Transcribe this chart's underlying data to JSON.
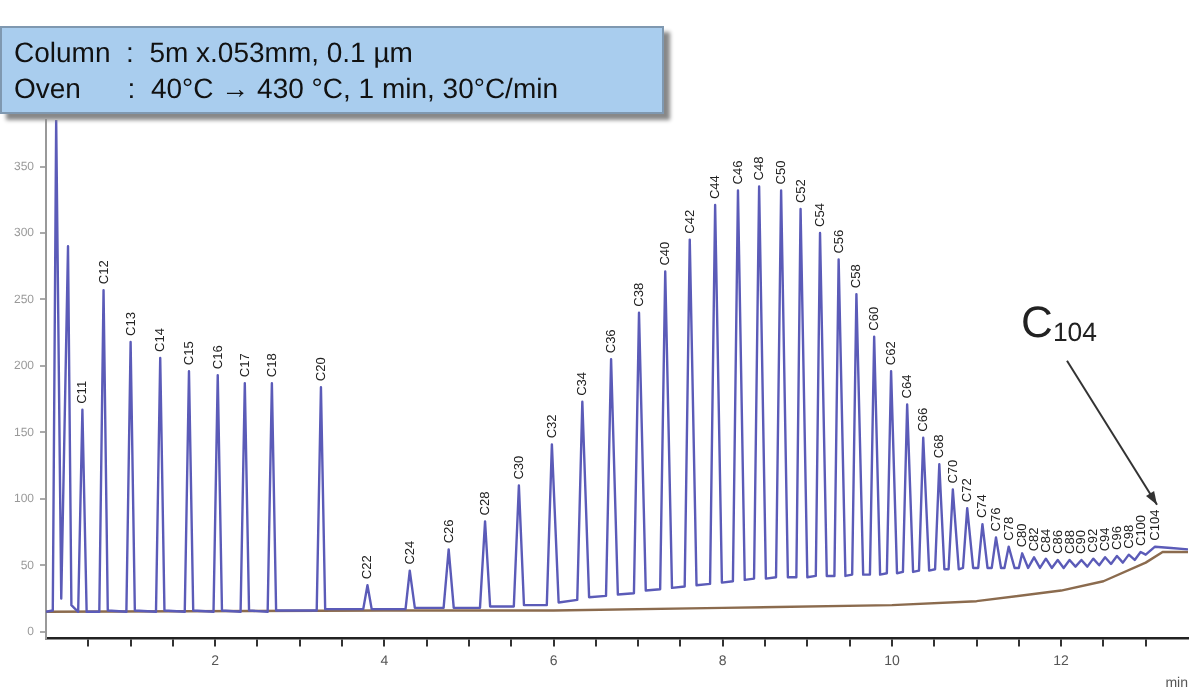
{
  "chart_data": {
    "type": "line",
    "title": "Column  :  5m x.053mm, 0.1 µm",
    "subtitle": "Oven      :  40°C → 430 °C, 1 min, 30°C/min",
    "xlabel": "min",
    "xlim": [
      0,
      13.5
    ],
    "ylim": [
      -5,
      385
    ],
    "xticks": [
      {
        "value": 0.5,
        "label": null
      },
      {
        "value": 1,
        "label": null
      },
      {
        "value": 1.5,
        "label": null
      },
      2,
      {
        "value": 2.5,
        "label": null
      },
      {
        "value": 3,
        "label": null
      },
      {
        "value": 3.5,
        "label": null
      },
      4,
      {
        "value": 4.5,
        "label": null
      },
      {
        "value": 5,
        "label": null
      },
      {
        "value": 5.5,
        "label": null
      },
      6,
      {
        "value": 6.5,
        "label": null
      },
      {
        "value": 7,
        "label": null
      },
      {
        "value": 7.5,
        "label": null
      },
      8,
      {
        "value": 8.5,
        "label": null
      },
      {
        "value": 9,
        "label": null
      },
      {
        "value": 9.5,
        "label": null
      },
      10,
      {
        "value": 10.5,
        "label": null
      },
      {
        "value": 11,
        "label": null
      },
      {
        "value": 11.5,
        "label": null
      },
      12,
      {
        "value": 12.5,
        "label": null
      },
      {
        "value": 13,
        "label": null
      }
    ],
    "yticks": [
      0,
      50,
      100,
      150,
      200,
      250,
      300,
      350
    ],
    "grid": false,
    "legend": false,
    "marker": "none",
    "line_style": "solid",
    "series": [
      {
        "color": "#5b5bb8",
        "x": [
          0,
          0.08,
          0.12,
          0.18,
          0.26,
          0.3,
          0.38,
          0.43,
          0.48,
          0.63,
          0.68,
          0.73,
          0.95,
          1.0,
          1.05,
          1.3,
          1.35,
          1.4,
          1.64,
          1.69,
          1.74,
          1.98,
          2.03,
          2.08,
          2.3,
          2.35,
          2.4,
          2.62,
          2.67,
          2.72,
          3.2,
          3.25,
          3.3,
          3.75,
          3.8,
          3.85,
          4.25,
          4.3,
          4.36,
          4.7,
          4.76,
          4.82,
          5.13,
          5.19,
          5.25,
          5.53,
          5.59,
          5.65,
          5.92,
          5.98,
          6.06,
          6.28,
          6.34,
          6.42,
          6.62,
          6.68,
          6.76,
          6.95,
          7.01,
          7.09,
          7.26,
          7.32,
          7.4,
          7.55,
          7.61,
          7.69,
          7.85,
          7.91,
          7.99,
          8.12,
          8.18,
          8.26,
          8.37,
          8.43,
          8.51,
          8.63,
          8.69,
          8.77,
          8.87,
          8.92,
          9.0,
          9.1,
          9.15,
          9.23,
          9.32,
          9.37,
          9.45,
          9.53,
          9.58,
          9.66,
          9.74,
          9.79,
          9.86,
          9.94,
          9.99,
          10.06,
          10.13,
          10.18,
          10.25,
          10.32,
          10.37,
          10.44,
          10.51,
          10.56,
          10.62,
          10.67,
          10.72,
          10.79,
          10.84,
          10.89,
          10.96,
          11.02,
          11.07,
          11.13,
          11.18,
          11.23,
          11.29,
          11.33,
          11.38,
          11.45,
          11.5,
          11.54,
          11.61,
          11.68,
          11.75,
          11.82,
          11.89,
          11.96,
          12.03,
          12.1,
          12.17,
          12.24,
          12.31,
          12.38,
          12.45,
          12.52,
          12.59,
          12.66,
          12.73,
          12.8,
          12.87,
          12.94,
          13.0,
          13.11,
          13.3,
          13.5
        ],
        "values": [
          15,
          16,
          385,
          25,
          290,
          20,
          15,
          167,
          15,
          15,
          257,
          16,
          15,
          218,
          16,
          15,
          206,
          16,
          15,
          196,
          16,
          15,
          193,
          16,
          15,
          187,
          16,
          15,
          187,
          16,
          16,
          184,
          17,
          17,
          35,
          17,
          17,
          46,
          18,
          18,
          62,
          18,
          18,
          83,
          19,
          19,
          110,
          20,
          20,
          141,
          22,
          24,
          173,
          26,
          27,
          205,
          28,
          29,
          240,
          31,
          32,
          271,
          33,
          34,
          295,
          35,
          36,
          321,
          37,
          38,
          332,
          39,
          40,
          335,
          40,
          41,
          332,
          41,
          41,
          318,
          41,
          42,
          300,
          42,
          42,
          280,
          42,
          43,
          254,
          43,
          43,
          222,
          43,
          44,
          196,
          44,
          45,
          171,
          45,
          46,
          146,
          46,
          47,
          126,
          47,
          47,
          107,
          47,
          48,
          93,
          48,
          48,
          81,
          48,
          48,
          71,
          48,
          48,
          64,
          48,
          48,
          59,
          48,
          56,
          48,
          55,
          48,
          54,
          48,
          54,
          49,
          54,
          49,
          55,
          50,
          56,
          51,
          57,
          52,
          58,
          54,
          60,
          58,
          64,
          63,
          62
        ]
      },
      {
        "color": "#8b6b4e",
        "x": [
          0,
          4,
          6,
          8,
          10,
          11,
          12,
          12.5,
          13,
          13.2,
          13.5
        ],
        "values": [
          15,
          16,
          16,
          18,
          20,
          23,
          31,
          38,
          52,
          60,
          60
        ]
      }
    ],
    "annotations": [
      {
        "text": "C11",
        "x": 0.43,
        "y": 167
      },
      {
        "text": "C12",
        "x": 0.68,
        "y": 257
      },
      {
        "text": "C13",
        "x": 1.0,
        "y": 218
      },
      {
        "text": "C14",
        "x": 1.35,
        "y": 206
      },
      {
        "text": "C15",
        "x": 1.69,
        "y": 196
      },
      {
        "text": "C16",
        "x": 2.03,
        "y": 193
      },
      {
        "text": "C17",
        "x": 2.35,
        "y": 187
      },
      {
        "text": "C18",
        "x": 2.67,
        "y": 187
      },
      {
        "text": "C20",
        "x": 3.25,
        "y": 184
      },
      {
        "text": "C22",
        "x": 3.8,
        "y": 35
      },
      {
        "text": "C24",
        "x": 4.3,
        "y": 46
      },
      {
        "text": "C26",
        "x": 4.76,
        "y": 62
      },
      {
        "text": "C28",
        "x": 5.19,
        "y": 83
      },
      {
        "text": "C30",
        "x": 5.59,
        "y": 110
      },
      {
        "text": "C32",
        "x": 5.98,
        "y": 141
      },
      {
        "text": "C34",
        "x": 6.34,
        "y": 173
      },
      {
        "text": "C36",
        "x": 6.68,
        "y": 205
      },
      {
        "text": "C38",
        "x": 7.01,
        "y": 240
      },
      {
        "text": "C40",
        "x": 7.32,
        "y": 271
      },
      {
        "text": "C42",
        "x": 7.61,
        "y": 295
      },
      {
        "text": "C44",
        "x": 7.91,
        "y": 321
      },
      {
        "text": "C46",
        "x": 8.18,
        "y": 332
      },
      {
        "text": "C48",
        "x": 8.43,
        "y": 335
      },
      {
        "text": "C50",
        "x": 8.69,
        "y": 332
      },
      {
        "text": "C52",
        "x": 8.92,
        "y": 318
      },
      {
        "text": "C54",
        "x": 9.15,
        "y": 300
      },
      {
        "text": "C56",
        "x": 9.37,
        "y": 280
      },
      {
        "text": "C58",
        "x": 9.58,
        "y": 254
      },
      {
        "text": "C60",
        "x": 9.79,
        "y": 222
      },
      {
        "text": "C62",
        "x": 9.99,
        "y": 196
      },
      {
        "text": "C64",
        "x": 10.18,
        "y": 171
      },
      {
        "text": "C66",
        "x": 10.37,
        "y": 146
      },
      {
        "text": "C68",
        "x": 10.56,
        "y": 126
      },
      {
        "text": "C70",
        "x": 10.72,
        "y": 107
      },
      {
        "text": "C72",
        "x": 10.89,
        "y": 93
      },
      {
        "text": "C74",
        "x": 11.07,
        "y": 81
      },
      {
        "text": "C76",
        "x": 11.23,
        "y": 71
      },
      {
        "text": "C78",
        "x": 11.38,
        "y": 64
      },
      {
        "text": "C80",
        "x": 11.54,
        "y": 59
      },
      {
        "text": "C82",
        "x": 11.68,
        "y": 56
      },
      {
        "text": "C84",
        "x": 11.82,
        "y": 55
      },
      {
        "text": "C86",
        "x": 11.96,
        "y": 54
      },
      {
        "text": "C88",
        "x": 12.1,
        "y": 54
      },
      {
        "text": "C90",
        "x": 12.24,
        "y": 54
      },
      {
        "text": "C92",
        "x": 12.38,
        "y": 55
      },
      {
        "text": "C94",
        "x": 12.52,
        "y": 56
      },
      {
        "text": "C96",
        "x": 12.66,
        "y": 57
      },
      {
        "text": "C98",
        "x": 12.8,
        "y": 58
      },
      {
        "text": "C100",
        "x": 12.94,
        "y": 60
      },
      {
        "text": "C104",
        "x": 13.11,
        "y": 64
      },
      "C$_{104}$"
    ]
  }
}
